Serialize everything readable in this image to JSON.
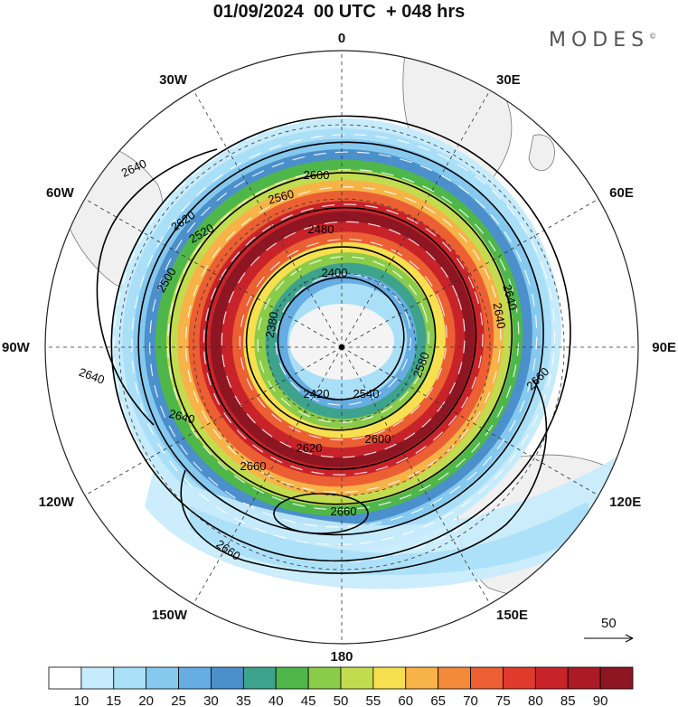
{
  "title": "01/09/2024  00 UTC  + 048 hrs",
  "brand": "MODES",
  "brand_mark": "©",
  "map": {
    "projection": "south-polar-stereographic",
    "longitude_labels": [
      {
        "text": "0",
        "lon": 0
      },
      {
        "text": "30E",
        "lon": 30
      },
      {
        "text": "60E",
        "lon": 60
      },
      {
        "text": "90E",
        "lon": 90
      },
      {
        "text": "120E",
        "lon": 120
      },
      {
        "text": "150E",
        "lon": 150
      },
      {
        "text": "180",
        "lon": 180
      },
      {
        "text": "150W",
        "lon": -150
      },
      {
        "text": "120W",
        "lon": -120
      },
      {
        "text": "90W",
        "lon": -90
      },
      {
        "text": "60W",
        "lon": -60
      },
      {
        "text": "30W",
        "lon": -30
      }
    ],
    "contour_labels": [
      "2640",
      "2600",
      "2560",
      "2520",
      "2480",
      "2400",
      "2380",
      "2640",
      "2620",
      "2500",
      "2640",
      "2640",
      "2660",
      "2660",
      "2660",
      "2420",
      "2540",
      "2620",
      "2600",
      "2580",
      "2640",
      "2660"
    ],
    "wind_speed_rings": [
      10,
      15,
      20,
      30,
      40,
      50,
      60,
      70,
      80,
      90,
      80,
      70,
      55,
      45,
      35,
      25,
      15
    ]
  },
  "reference_vector": {
    "value": "50"
  },
  "colorbar": {
    "colors": [
      "#ffffff",
      "#c6ebfb",
      "#aadff8",
      "#86c9ef",
      "#65ade2",
      "#4b8fcb",
      "#3da38d",
      "#4fb74a",
      "#8bcb4a",
      "#c3dc4f",
      "#f6e04f",
      "#f7b347",
      "#f28a3a",
      "#ec5f32",
      "#e03a2c",
      "#c9232a",
      "#ac1a26",
      "#8e1522"
    ],
    "labels": [
      "10",
      "15",
      "20",
      "25",
      "30",
      "35",
      "40",
      "45",
      "50",
      "55",
      "60",
      "65",
      "70",
      "75",
      "80",
      "85",
      "90"
    ]
  }
}
